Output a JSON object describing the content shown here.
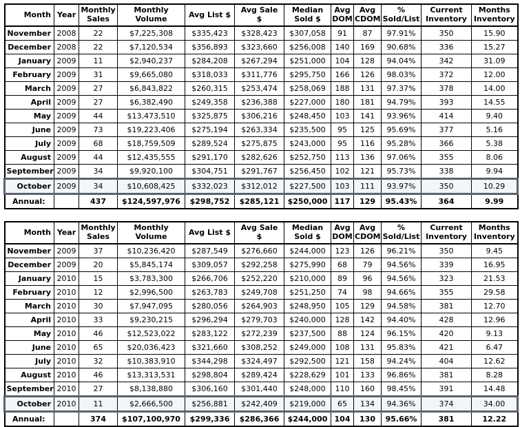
{
  "styles": {
    "table_border_color": "#000000",
    "highlight_border_color": "#5b6269",
    "highlight_row_background": "#f2f6f9",
    "text_color": "#000000",
    "background_color": "#ffffff"
  },
  "chart_data": [
    {
      "type": "table",
      "columns": [
        "Month",
        "Year",
        "Monthly\nSales",
        "Monthly\nVolume",
        "Avg List $",
        "Avg Sale\n$",
        "Median\nSold $",
        "Avg\nDOM",
        "Avg\nCDOM",
        "%\nSold/List",
        "Current\nInventory",
        "Months\nInventory"
      ],
      "highlight_index": 11,
      "rows": [
        [
          "November",
          "2008",
          "22",
          "$7,225,308",
          "$335,423",
          "$328,423",
          "$307,058",
          "91",
          "87",
          "97.91%",
          "350",
          "15.90"
        ],
        [
          "December",
          "2008",
          "22",
          "$7,120,534",
          "$356,893",
          "$323,660",
          "$256,008",
          "140",
          "169",
          "90.68%",
          "336",
          "15.27"
        ],
        [
          "January",
          "2009",
          "11",
          "$2,940,237",
          "$284,208",
          "$267,294",
          "$251,000",
          "104",
          "128",
          "94.04%",
          "342",
          "31.09"
        ],
        [
          "February",
          "2009",
          "31",
          "$9,665,080",
          "$318,033",
          "$311,776",
          "$295,750",
          "166",
          "126",
          "98.03%",
          "372",
          "12.00"
        ],
        [
          "March",
          "2009",
          "27",
          "$6,843,822",
          "$260,315",
          "$253,474",
          "$258,069",
          "188",
          "131",
          "97.37%",
          "378",
          "14.00"
        ],
        [
          "April",
          "2009",
          "27",
          "$6,382,490",
          "$249,358",
          "$236,388",
          "$227,000",
          "180",
          "181",
          "94.79%",
          "393",
          "14.55"
        ],
        [
          "May",
          "2009",
          "44",
          "$13,473,510",
          "$325,875",
          "$306,216",
          "$248,450",
          "103",
          "141",
          "93.96%",
          "414",
          "9.40"
        ],
        [
          "June",
          "2009",
          "73",
          "$19,223,406",
          "$275,194",
          "$263,334",
          "$235,500",
          "95",
          "125",
          "95.69%",
          "377",
          "5.16"
        ],
        [
          "July",
          "2009",
          "68",
          "$18,759,509",
          "$289,524",
          "$275,875",
          "$243,000",
          "95",
          "116",
          "95.28%",
          "366",
          "5.38"
        ],
        [
          "August",
          "2009",
          "44",
          "$12,435,555",
          "$291,170",
          "$282,626",
          "$252,750",
          "113",
          "136",
          "97.06%",
          "355",
          "8.06"
        ],
        [
          "September",
          "2009",
          "34",
          "$9,920,100",
          "$304,751",
          "$291,767",
          "$256,450",
          "102",
          "121",
          "95.73%",
          "338",
          "9.94"
        ],
        [
          "October",
          "2009",
          "34",
          "$10,608,425",
          "$332,023",
          "$312,012",
          "$227,500",
          "103",
          "111",
          "93.97%",
          "350",
          "10.29"
        ]
      ],
      "annual": [
        "Annual:",
        "",
        "437",
        "$124,597,976",
        "$298,752",
        "$285,121",
        "$250,000",
        "117",
        "129",
        "95.43%",
        "364",
        "9.99"
      ]
    },
    {
      "type": "table",
      "columns": [
        "Month",
        "Year",
        "Monthly\nSales",
        "Monthly\nVolume",
        "Avg List $",
        "Avg Sale\n$",
        "Median\nSold $",
        "Avg\nDOM",
        "Avg\nCDOM",
        "%\nSold/List",
        "Current\nInventory",
        "Months\nInventory"
      ],
      "highlight_index": 11,
      "rows": [
        [
          "November",
          "2009",
          "37",
          "$10,236,420",
          "$287,549",
          "$276,660",
          "$244,000",
          "123",
          "126",
          "96.21%",
          "350",
          "9.45"
        ],
        [
          "December",
          "2009",
          "20",
          "$5,845,174",
          "$309,057",
          "$292,258",
          "$275,990",
          "68",
          "79",
          "94.56%",
          "339",
          "16.95"
        ],
        [
          "January",
          "2010",
          "15",
          "$3,783,300",
          "$266,706",
          "$252,220",
          "$210,000",
          "89",
          "96",
          "94.56%",
          "323",
          "21.53"
        ],
        [
          "February",
          "2010",
          "12",
          "$2,996,500",
          "$263,783",
          "$249,708",
          "$251,250",
          "74",
          "98",
          "94.66%",
          "355",
          "29.58"
        ],
        [
          "March",
          "2010",
          "30",
          "$7,947,095",
          "$280,056",
          "$264,903",
          "$248,950",
          "105",
          "129",
          "94.58%",
          "381",
          "12.70"
        ],
        [
          "April",
          "2010",
          "33",
          "$9,230,215",
          "$296,294",
          "$279,703",
          "$240,000",
          "128",
          "142",
          "94.40%",
          "428",
          "12.96"
        ],
        [
          "May",
          "2010",
          "46",
          "$12,523,022",
          "$283,122",
          "$272,239",
          "$237,500",
          "88",
          "124",
          "96.15%",
          "420",
          "9.13"
        ],
        [
          "June",
          "2010",
          "65",
          "$20,036,423",
          "$321,660",
          "$308,252",
          "$249,000",
          "108",
          "131",
          "95.83%",
          "421",
          "6.47"
        ],
        [
          "July",
          "2010",
          "32",
          "$10,383,910",
          "$344,298",
          "$324,497",
          "$292,500",
          "121",
          "158",
          "94.24%",
          "404",
          "12.62"
        ],
        [
          "August",
          "2010",
          "46",
          "$13,313,531",
          "$298,804",
          "$289,424",
          "$228,629",
          "101",
          "133",
          "96.86%",
          "381",
          "8.28"
        ],
        [
          "September",
          "2010",
          "27",
          "$8,138,880",
          "$306,160",
          "$301,440",
          "$248,000",
          "110",
          "160",
          "98.45%",
          "391",
          "14.48"
        ],
        [
          "October",
          "2010",
          "11",
          "$2,666,500",
          "$256,881",
          "$242,409",
          "$219,000",
          "65",
          "134",
          "94.36%",
          "374",
          "34.00"
        ]
      ],
      "annual": [
        "Annual:",
        "",
        "374",
        "$107,100,970",
        "$299,336",
        "$286,366",
        "$244,000",
        "104",
        "130",
        "95.66%",
        "381",
        "12.22"
      ]
    }
  ]
}
